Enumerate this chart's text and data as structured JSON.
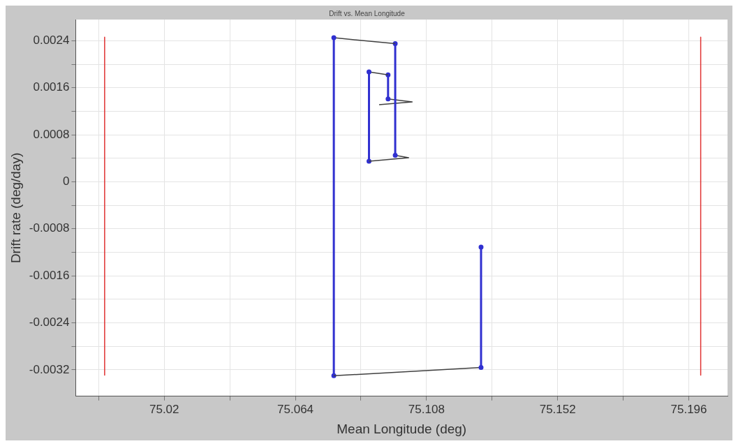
{
  "chart_data": {
    "type": "line",
    "title": "Drift vs. Mean Longitude",
    "xlabel": "Mean Longitude (deg)",
    "ylabel": "Drift rate (deg/day)",
    "xlim": [
      74.9903,
      75.209
    ],
    "xticks": [
      {
        "value": 74.998,
        "label": null
      },
      75.02,
      {
        "value": 75.042,
        "label": null
      },
      75.064,
      {
        "value": 75.086,
        "label": null
      },
      75.108,
      {
        "value": 75.13,
        "label": null
      },
      75.152,
      {
        "value": 75.174,
        "label": null
      },
      75.196
    ],
    "ylim": [
      -0.00365,
      0.00276
    ],
    "yticks": [
      -0.0032,
      {
        "value": -0.0028,
        "label": null
      },
      -0.0024,
      {
        "value": -0.002,
        "label": null
      },
      -0.0016,
      {
        "value": -0.0012,
        "label": null
      },
      -0.0008,
      {
        "value": -0.0004,
        "label": null
      },
      0,
      {
        "value": 0.0004,
        "label": null
      },
      0.0008,
      {
        "value": 0.0012,
        "label": null
      },
      0.0016,
      {
        "value": 0.002,
        "label": null
      },
      0.0024
    ],
    "grid": true,
    "legend": false,
    "line_style": "solid",
    "series": [
      {
        "color": "#e03030",
        "marker": "none",
        "x": [
          75.0,
          75.0
        ],
        "values": [
          0.00246,
          -0.00329
        ]
      },
      {
        "color": "#e03030",
        "marker": "none",
        "x": [
          75.2,
          75.2
        ],
        "values": [
          0.00246,
          -0.00329
        ]
      },
      {
        "color": "#3030d0",
        "marker": "circle",
        "x": [
          75.1263,
          75.1263
        ],
        "values": [
          -0.00111,
          -0.00316
        ]
      },
      {
        "color": "#404040",
        "marker": "none",
        "x": [
          75.1263,
          75.0769
        ],
        "values": [
          -0.00316,
          -0.0033
        ]
      },
      {
        "color": "#3030d0",
        "marker": "circle",
        "x": [
          75.0769,
          75.0769
        ],
        "values": [
          -0.0033,
          0.00245
        ]
      },
      {
        "color": "#404040",
        "marker": "none",
        "x": [
          75.0769,
          75.0975
        ],
        "values": [
          0.00245,
          0.00235
        ]
      },
      {
        "color": "#3030d0",
        "marker": "circle",
        "x": [
          75.0975,
          75.0975
        ],
        "values": [
          0.00235,
          0.00045
        ]
      },
      {
        "color": "#404040",
        "marker": "none",
        "x": [
          75.0975,
          75.102,
          75.0887
        ],
        "values": [
          0.00045,
          0.00041,
          0.00035
        ]
      },
      {
        "color": "#3030d0",
        "marker": "circle",
        "x": [
          75.0887,
          75.0887
        ],
        "values": [
          0.00035,
          0.00187
        ]
      },
      {
        "color": "#404040",
        "marker": "none",
        "x": [
          75.0887,
          75.0951
        ],
        "values": [
          0.00187,
          0.00182
        ]
      },
      {
        "color": "#3030d0",
        "marker": "circle",
        "x": [
          75.0951,
          75.0951
        ],
        "values": [
          0.00182,
          0.00141
        ]
      },
      {
        "color": "#404040",
        "marker": "none",
        "x": [
          75.0951,
          75.1032,
          75.0921
        ],
        "values": [
          0.00141,
          0.00136,
          0.00131
        ]
      }
    ]
  }
}
